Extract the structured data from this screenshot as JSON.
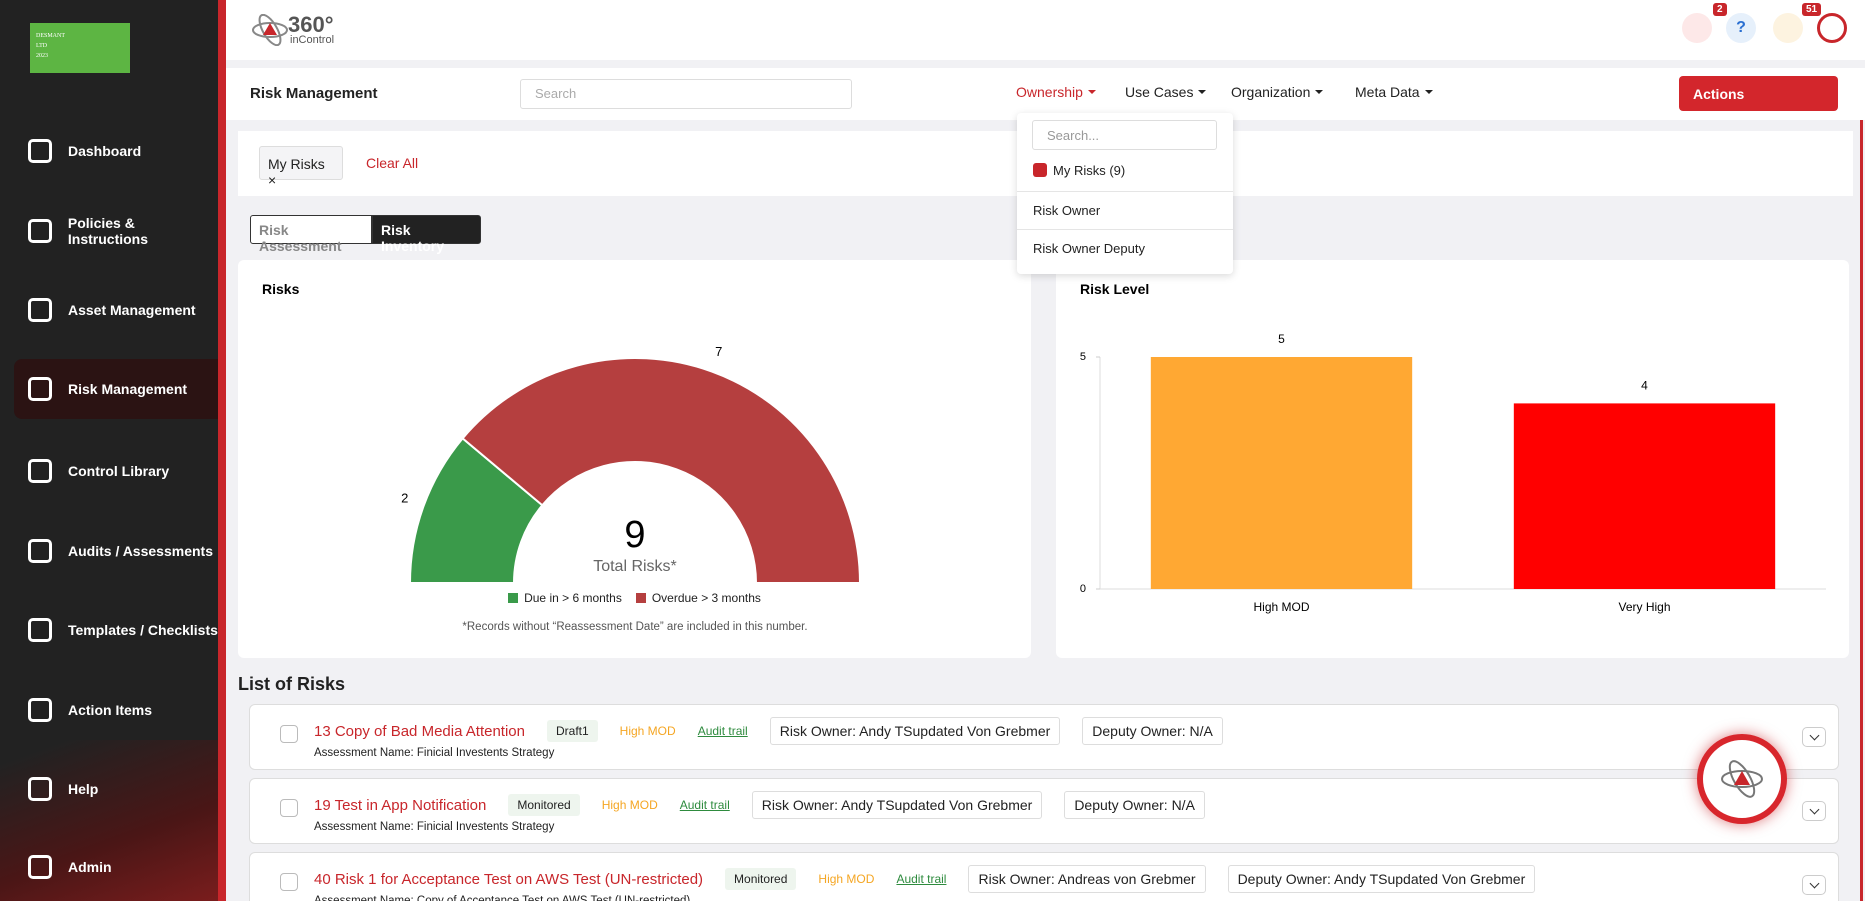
{
  "sidebar": {
    "logo": [
      "DESMANT",
      "LTD",
      "2023"
    ],
    "nav": [
      "Dashboard",
      "Policies & Instructions",
      "Asset Management",
      "Risk Management",
      "Control Library",
      "Audits / Assessments",
      "Templates / Checklists",
      "Action Items",
      "Help",
      "Admin"
    ]
  },
  "header": {
    "brand": "360°",
    "brand_sub": "inControl",
    "badges": [
      2,
      51
    ]
  },
  "toolbar": {
    "title": "Risk Management",
    "search": "Search",
    "menus": [
      "Ownership",
      "Use Cases",
      "Organization",
      "Meta Data"
    ],
    "actions": "Actions"
  },
  "ownership_menu": {
    "search": "Search...",
    "items": [
      "My Risks (9)",
      "Risk Owner",
      "Risk Owner Deputy"
    ]
  },
  "filters": {
    "chips": [
      "My Risks"
    ],
    "clear": "Clear All"
  },
  "tabs": [
    "Risk Assessment",
    "Risk Inventory"
  ],
  "chart_data": [
    {
      "type": "gauge",
      "title": "Risks",
      "categories": [
        "Due in > 6 months",
        "Overdue > 3 months"
      ],
      "values": [
        2,
        7
      ],
      "colors": [
        "#3a9a4a",
        "#b53f3f"
      ],
      "center_value": 9,
      "center_label": "Total Risks*",
      "note": "*Records without “Reassessment Date” are included in this number."
    },
    {
      "type": "bar",
      "title": "Risk Level",
      "categories": [
        "High MOD",
        "Very High"
      ],
      "values": [
        5,
        4
      ],
      "colors": [
        "#ffa833",
        "#ff0000"
      ],
      "ylim": [
        0,
        5
      ],
      "yticks": [
        0,
        5
      ]
    }
  ],
  "list": {
    "title": "List of Risks",
    "rows": [
      {
        "title": "13 Copy of Bad Media Attention",
        "status": "Draft1",
        "level": "High MOD",
        "audit": "Audit trail",
        "owner": "Risk Owner: Andy TSupdated Von Grebmer",
        "deputy": "Deputy Owner: N/A",
        "assessment": "Assessment Name: Finicial Investents Strategy"
      },
      {
        "title": "19 Test in App Notification",
        "status": "Monitored",
        "level": "High MOD",
        "audit": "Audit trail",
        "owner": "Risk Owner: Andy TSupdated Von Grebmer",
        "deputy": "Deputy Owner: N/A",
        "assessment": "Assessment Name: Finicial Investents Strategy"
      },
      {
        "title": "40 Risk 1 for Acceptance Test on AWS Test (UN-restricted)",
        "status": "Monitored",
        "level": "High MOD",
        "audit": "Audit trail",
        "owner": "Risk Owner: Andreas von Grebmer",
        "deputy": "Deputy Owner: Andy TSupdated Von Grebmer",
        "assessment": "Assessment Name: Copy of Acceptance Test on AWS Test (UN-restricted)"
      }
    ]
  }
}
